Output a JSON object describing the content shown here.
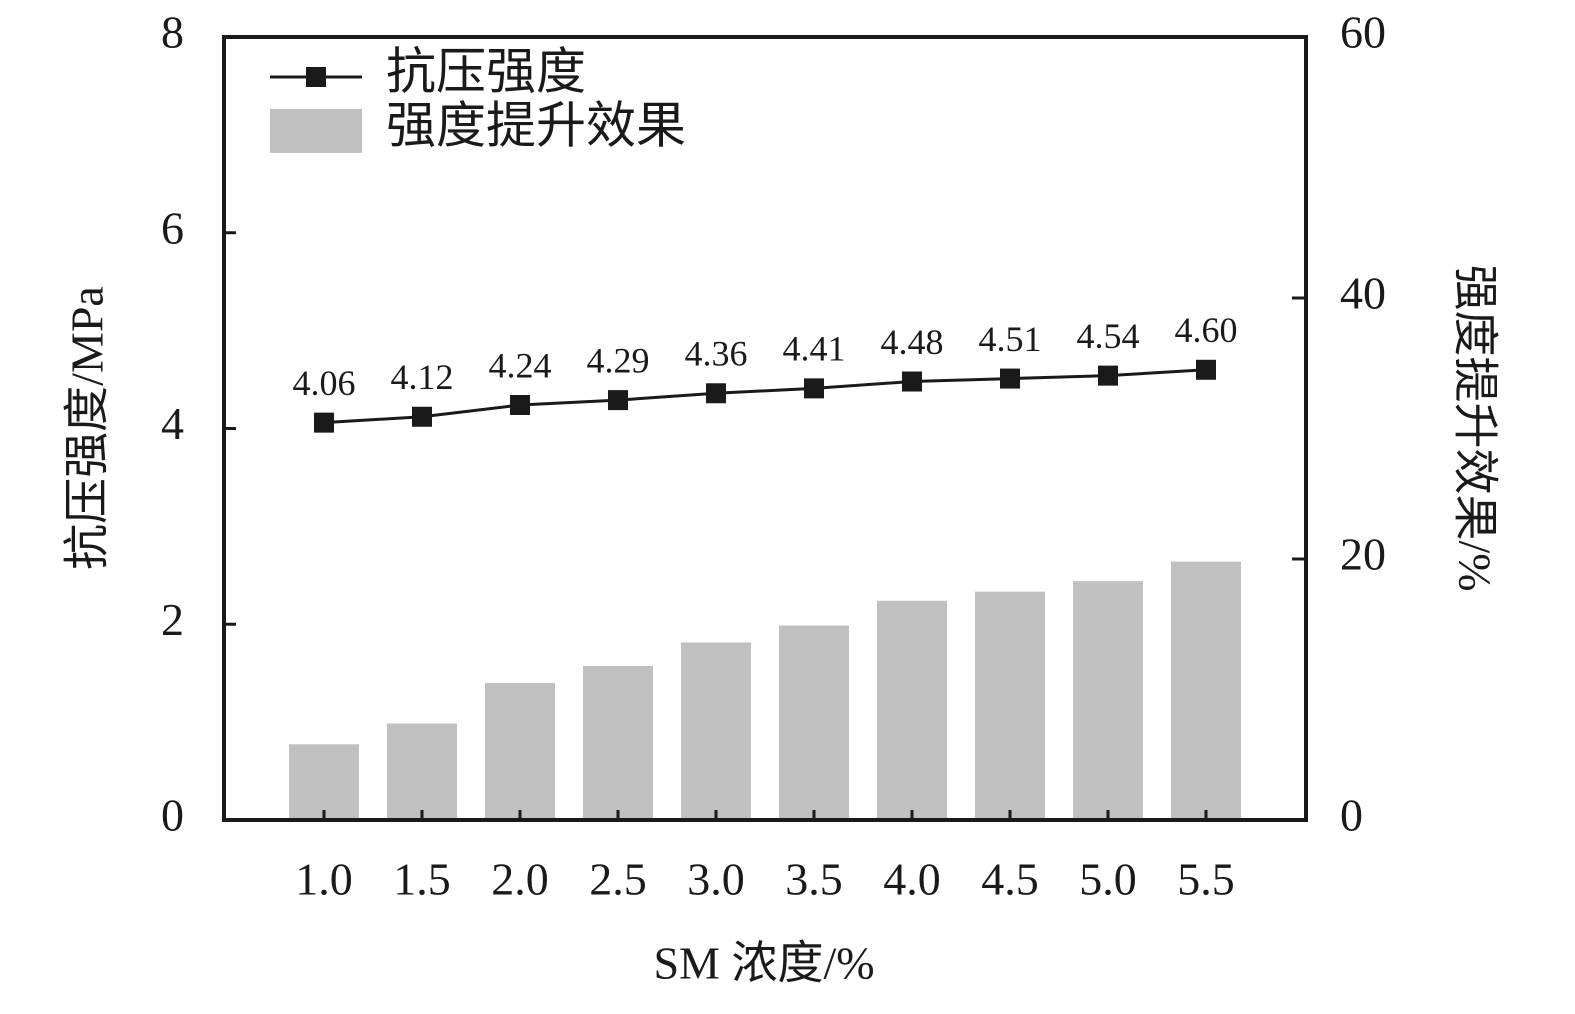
{
  "chart_data": {
    "type": "combo",
    "xlabel": "SM 浓度/%",
    "ylabel": "抗压强度/MPa",
    "y2label": "强度提升效果/%",
    "categories": [
      "1.0",
      "1.5",
      "2.0",
      "2.5",
      "3.0",
      "3.5",
      "4.0",
      "4.5",
      "5.0",
      "5.5"
    ],
    "series": [
      {
        "name": "抗压强度",
        "type": "line",
        "color": "#1a1a1a",
        "values": [
          4.06,
          4.12,
          4.24,
          4.29,
          4.36,
          4.41,
          4.48,
          4.51,
          4.54,
          4.6
        ],
        "value_labels": [
          "4.06",
          "4.12",
          "4.24",
          "4.29",
          "4.36",
          "4.41",
          "4.48",
          "4.51",
          "4.54",
          "4.60"
        ]
      },
      {
        "name": "强度提升效果",
        "type": "bar",
        "axis": "y2",
        "color": "#c0c0c0",
        "values": [
          5.8,
          7.4,
          10.5,
          11.8,
          13.6,
          14.9,
          16.8,
          17.5,
          18.3,
          19.8
        ]
      }
    ],
    "ylim": [
      0,
      8
    ],
    "yticks": [
      0,
      2,
      4,
      6,
      8
    ],
    "y2lim": [
      0,
      60
    ],
    "y2ticks": [
      0,
      20,
      40,
      60
    ],
    "grid": false,
    "legend": "upper left"
  }
}
